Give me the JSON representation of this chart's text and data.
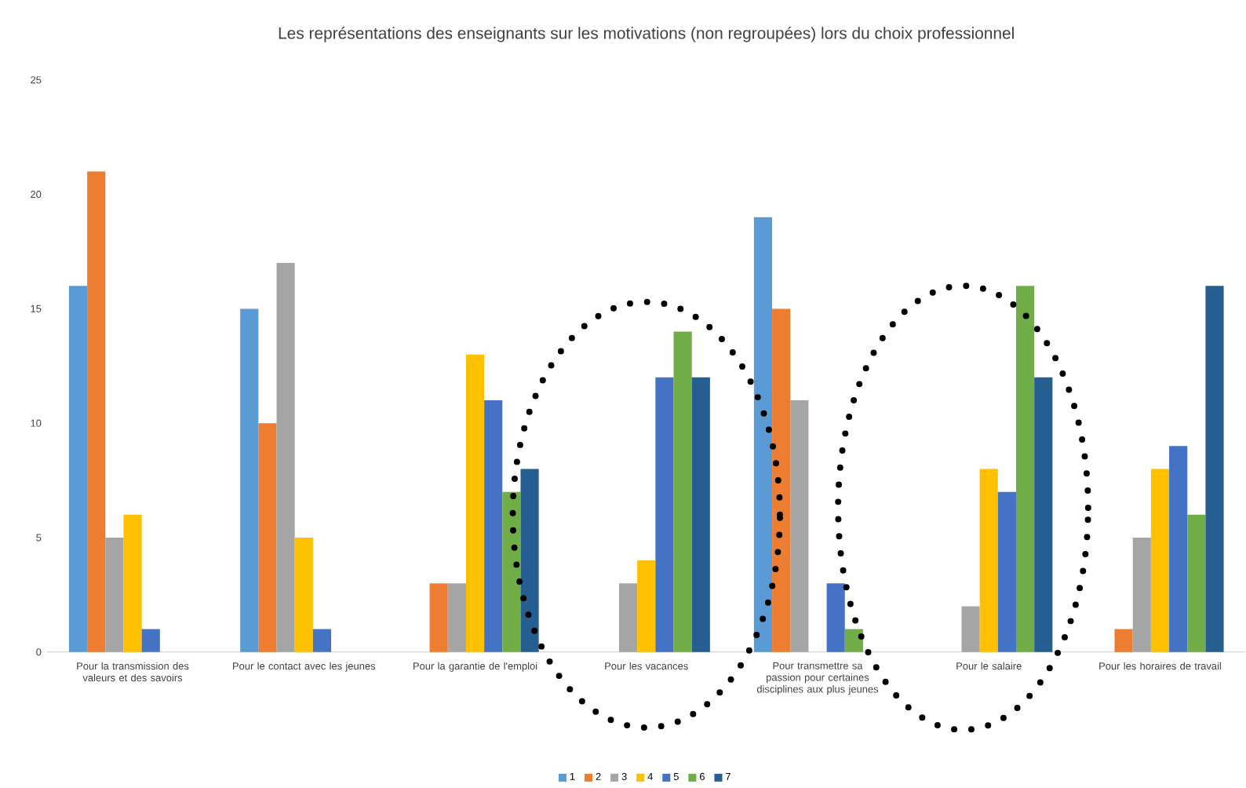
{
  "chart_data": {
    "type": "bar",
    "title": "Les représentations des enseignants sur les motivations (non regroupées) lors du choix professionnel",
    "categories": [
      "Pour la transmission des valeurs et des savoirs",
      "Pour le contact avec les jeunes",
      "Pour la garantie de l'emploi",
      "Pour les vacances",
      "Pour transmettre sa passion pour certaines disciplines aux plus jeunes",
      "Pour le salaire",
      "Pour les horaires de travail"
    ],
    "series": [
      {
        "name": "1",
        "color": "#5b9bd5",
        "values": [
          16,
          15,
          0,
          0,
          19,
          0,
          0
        ]
      },
      {
        "name": "2",
        "color": "#ed7d31",
        "values": [
          21,
          10,
          3,
          0,
          15,
          0,
          1
        ]
      },
      {
        "name": "3",
        "color": "#a5a5a5",
        "values": [
          5,
          17,
          3,
          3,
          11,
          2,
          5
        ]
      },
      {
        "name": "4",
        "color": "#ffc000",
        "values": [
          6,
          5,
          13,
          4,
          0,
          8,
          8
        ]
      },
      {
        "name": "5",
        "color": "#4472c4",
        "values": [
          1,
          1,
          11,
          12,
          3,
          7,
          9
        ]
      },
      {
        "name": "6",
        "color": "#70ad47",
        "values": [
          0,
          0,
          7,
          14,
          1,
          16,
          6
        ]
      },
      {
        "name": "7",
        "color": "#255e91",
        "values": [
          0,
          0,
          8,
          12,
          0,
          12,
          16
        ]
      }
    ],
    "ylim": [
      0,
      25
    ],
    "yticks": [
      0,
      5,
      10,
      15,
      20,
      25
    ],
    "grid": false,
    "legend": "bottom"
  }
}
